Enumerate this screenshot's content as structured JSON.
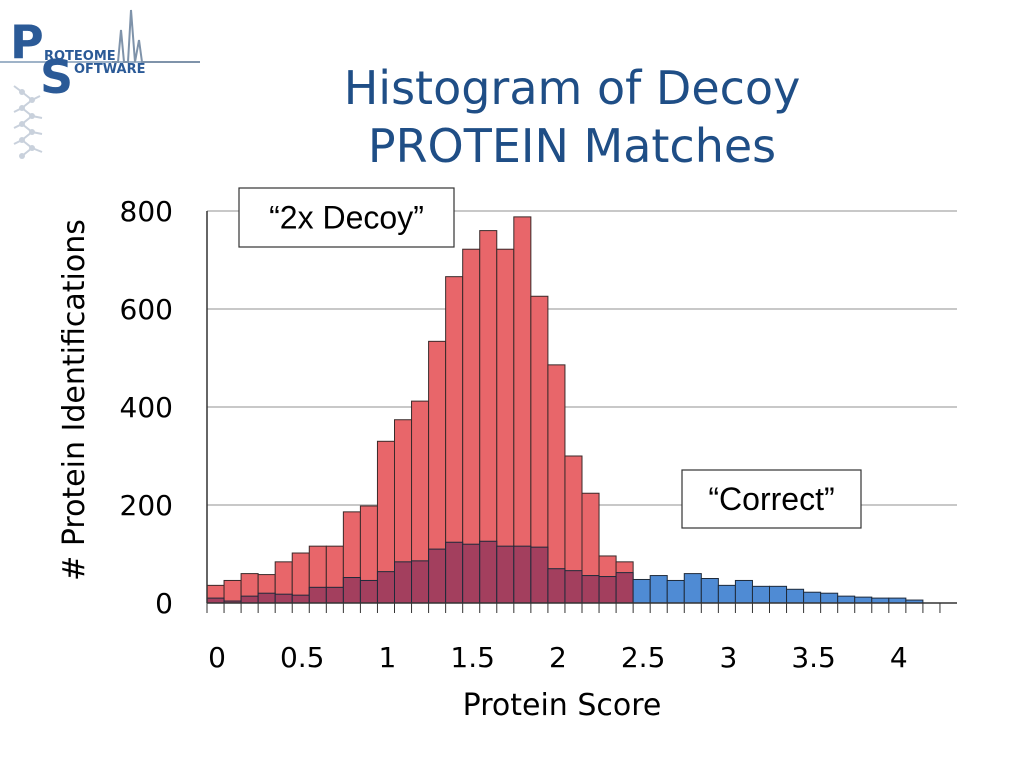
{
  "slide": {
    "title_line1": "Histogram of Decoy",
    "title_line2": "PROTEIN Matches"
  },
  "logo": {
    "letter_p": "P",
    "letter_s": "S",
    "word1": "ROTEOME",
    "word2": "OFTWARE"
  },
  "chart_data": {
    "type": "bar",
    "title": "",
    "xlabel": "Protein Score",
    "ylabel": "# Protein Identifications",
    "xlim": [
      0,
      4.4
    ],
    "ylim": [
      0,
      800
    ],
    "bin_width": 0.1,
    "x_ticks": [
      0,
      0.5,
      1,
      1.5,
      2,
      2.5,
      3,
      3.5,
      4
    ],
    "x_tick_labels": [
      "0",
      "0.5",
      "1",
      "1.5",
      "2",
      "2.5",
      "3",
      "3.5",
      "4"
    ],
    "y_ticks": [
      0,
      200,
      400,
      600,
      800
    ],
    "y_tick_labels": [
      "0",
      "200",
      "400",
      "600",
      "800"
    ],
    "grid": "horizontal",
    "bin_starts": [
      0,
      0.1,
      0.2,
      0.3,
      0.4,
      0.5,
      0.6,
      0.7,
      0.8,
      0.9,
      1.0,
      1.1,
      1.2,
      1.3,
      1.4,
      1.5,
      1.6,
      1.7,
      1.8,
      1.9,
      2.0,
      2.1,
      2.2,
      2.3,
      2.4,
      2.5,
      2.6,
      2.7,
      2.8,
      2.9,
      3.0,
      3.1,
      3.2,
      3.3,
      3.4,
      3.5,
      3.6,
      3.7,
      3.8,
      3.9,
      4.0,
      4.1,
      4.2
    ],
    "series": [
      {
        "name": "2x Decoy",
        "color": "#e8666a",
        "values": [
          36,
          46,
          60,
          58,
          84,
          102,
          116,
          116,
          186,
          198,
          330,
          374,
          412,
          534,
          666,
          722,
          760,
          722,
          788,
          626,
          486,
          300,
          224,
          96,
          84,
          20,
          0,
          0,
          0,
          0,
          0,
          0,
          0,
          0,
          0,
          0,
          0,
          0,
          0,
          0,
          0,
          0,
          0
        ]
      },
      {
        "name": "Correct",
        "color": "#4f8bd4",
        "values": [
          10,
          4,
          14,
          20,
          18,
          16,
          32,
          32,
          52,
          46,
          64,
          84,
          86,
          110,
          124,
          120,
          126,
          116,
          116,
          114,
          70,
          66,
          56,
          54,
          62,
          48,
          56,
          46,
          60,
          50,
          36,
          46,
          34,
          34,
          28,
          22,
          20,
          14,
          12,
          10,
          10,
          6,
          0
        ]
      }
    ],
    "annotations": [
      {
        "text": "“2x Decoy”",
        "series": "2x Decoy"
      },
      {
        "text": "“Correct”",
        "series": "Correct"
      }
    ]
  }
}
